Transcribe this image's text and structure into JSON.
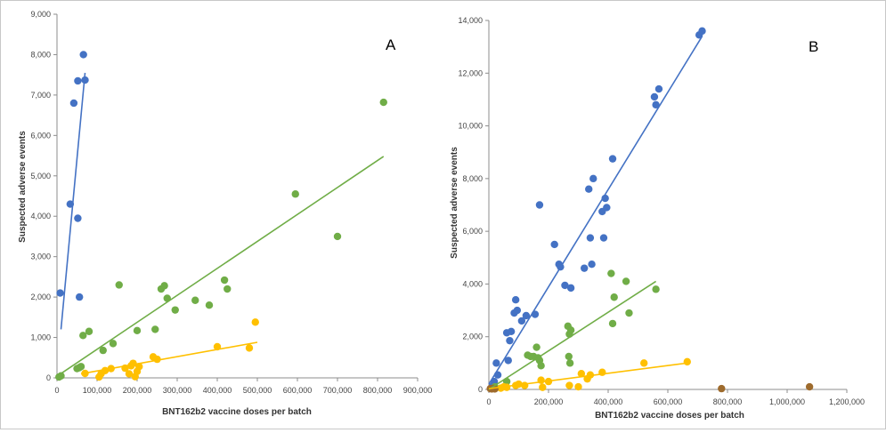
{
  "chart_data": [
    {
      "type": "scatter",
      "panel_label": "A",
      "xlabel": "BNT162b2 vaccine doses per batch",
      "ylabel": "Suspected adverse events",
      "xlim": [
        0,
        900000
      ],
      "ylim": [
        0,
        9000
      ],
      "x_ticks": [
        0,
        100000,
        200000,
        300000,
        400000,
        500000,
        600000,
        700000,
        800000,
        900000
      ],
      "x_tick_labels": [
        "0",
        "100,000",
        "200,000",
        "300,000",
        "400,000",
        "500,000",
        "600,000",
        "700,000",
        "800,000",
        "900,000"
      ],
      "y_ticks": [
        0,
        1000,
        2000,
        3000,
        4000,
        5000,
        6000,
        7000,
        8000,
        9000
      ],
      "y_tick_labels": [
        "0",
        "1,000",
        "2,000",
        "3,000",
        "4,000",
        "5,000",
        "6,000",
        "7,000",
        "8,000",
        "9,000"
      ],
      "series": [
        {
          "name": "blue",
          "color": "#4472C4",
          "points": [
            [
              8000,
              2100
            ],
            [
              33000,
              4300
            ],
            [
              42000,
              6800
            ],
            [
              52000,
              7350
            ],
            [
              56000,
              2000
            ],
            [
              52000,
              3950
            ],
            [
              66000,
              8000
            ],
            [
              70000,
              7370
            ]
          ],
          "trendline": [
            [
              10000,
              1200
            ],
            [
              70000,
              7550
            ]
          ]
        },
        {
          "name": "green",
          "color": "#70AD47",
          "points": [
            [
              5000,
              20
            ],
            [
              10000,
              50
            ],
            [
              50000,
              230
            ],
            [
              55000,
              250
            ],
            [
              60000,
              280
            ],
            [
              65000,
              1050
            ],
            [
              80000,
              1150
            ],
            [
              115000,
              680
            ],
            [
              140000,
              850
            ],
            [
              155000,
              2300
            ],
            [
              200000,
              1170
            ],
            [
              245000,
              1200
            ],
            [
              260000,
              2200
            ],
            [
              268000,
              2280
            ],
            [
              275000,
              1970
            ],
            [
              295000,
              1680
            ],
            [
              345000,
              1920
            ],
            [
              380000,
              1800
            ],
            [
              418000,
              2420
            ],
            [
              425000,
              2200
            ],
            [
              595000,
              4550
            ],
            [
              700000,
              3500
            ],
            [
              815000,
              6820
            ]
          ],
          "trendline": [
            [
              0,
              40
            ],
            [
              815000,
              5480
            ]
          ]
        },
        {
          "name": "yellow",
          "color": "#FFC000",
          "points": [
            [
              70000,
              110
            ],
            [
              105000,
              20
            ],
            [
              110000,
              100
            ],
            [
              120000,
              180
            ],
            [
              135000,
              230
            ],
            [
              170000,
              240
            ],
            [
              180000,
              100
            ],
            [
              185000,
              300
            ],
            [
              190000,
              360
            ],
            [
              195000,
              30
            ],
            [
              200000,
              160
            ],
            [
              205000,
              280
            ],
            [
              240000,
              520
            ],
            [
              250000,
              460
            ],
            [
              400000,
              770
            ],
            [
              480000,
              740
            ],
            [
              495000,
              1380
            ]
          ],
          "trendline": [
            [
              60000,
              100
            ],
            [
              500000,
              880
            ]
          ]
        }
      ]
    },
    {
      "type": "scatter",
      "panel_label": "B",
      "xlabel": "BNT162b2 vaccine doses per batch",
      "ylabel": "Suspected adverse events",
      "xlim": [
        0,
        1200000
      ],
      "ylim": [
        0,
        14000
      ],
      "x_ticks": [
        0,
        200000,
        400000,
        600000,
        800000,
        1000000,
        1200000
      ],
      "x_tick_labels": [
        "0",
        "200,000",
        "400,000",
        "600,000",
        "800,000",
        "1,000,000",
        "1,200,000"
      ],
      "y_ticks": [
        0,
        2000,
        4000,
        6000,
        8000,
        10000,
        12000,
        14000
      ],
      "y_tick_labels": [
        "0",
        "2,000",
        "4,000",
        "6,000",
        "8,000",
        "10,000",
        "12,000",
        "14,000"
      ],
      "series": [
        {
          "name": "blue",
          "color": "#4472C4",
          "points": [
            [
              8000,
              60
            ],
            [
              12000,
              120
            ],
            [
              18000,
              300
            ],
            [
              25000,
              1000
            ],
            [
              30000,
              550
            ],
            [
              60000,
              2150
            ],
            [
              65000,
              1100
            ],
            [
              70000,
              1850
            ],
            [
              75000,
              2200
            ],
            [
              85000,
              2900
            ],
            [
              90000,
              3400
            ],
            [
              95000,
              3000
            ],
            [
              110000,
              2600
            ],
            [
              125000,
              2800
            ],
            [
              155000,
              2850
            ],
            [
              170000,
              7000
            ],
            [
              220000,
              5500
            ],
            [
              235000,
              4750
            ],
            [
              240000,
              4650
            ],
            [
              255000,
              3950
            ],
            [
              275000,
              3850
            ],
            [
              320000,
              4600
            ],
            [
              335000,
              7600
            ],
            [
              340000,
              5750
            ],
            [
              345000,
              4750
            ],
            [
              350000,
              8000
            ],
            [
              380000,
              6750
            ],
            [
              385000,
              5750
            ],
            [
              390000,
              7250
            ],
            [
              395000,
              6900
            ],
            [
              415000,
              8750
            ],
            [
              555000,
              11100
            ],
            [
              560000,
              10800
            ],
            [
              570000,
              11400
            ],
            [
              705000,
              13450
            ],
            [
              715000,
              13600
            ]
          ],
          "trendline": [
            [
              0,
              200
            ],
            [
              715000,
              13400
            ]
          ]
        },
        {
          "name": "green",
          "color": "#70AD47",
          "points": [
            [
              20000,
              100
            ],
            [
              60000,
              300
            ],
            [
              130000,
              1300
            ],
            [
              140000,
              1250
            ],
            [
              150000,
              1250
            ],
            [
              160000,
              1600
            ],
            [
              165000,
              1200
            ],
            [
              170000,
              1100
            ],
            [
              175000,
              900
            ],
            [
              265000,
              2400
            ],
            [
              268000,
              1250
            ],
            [
              270000,
              2100
            ],
            [
              272000,
              1000
            ],
            [
              275000,
              2250
            ],
            [
              410000,
              4400
            ],
            [
              415000,
              2500
            ],
            [
              420000,
              3500
            ],
            [
              460000,
              4100
            ],
            [
              470000,
              2900
            ],
            [
              560000,
              3800
            ]
          ],
          "trendline": [
            [
              0,
              0
            ],
            [
              560000,
              4100
            ]
          ]
        },
        {
          "name": "yellow",
          "color": "#FFC000",
          "points": [
            [
              40000,
              50
            ],
            [
              50000,
              100
            ],
            [
              60000,
              80
            ],
            [
              90000,
              150
            ],
            [
              100000,
              200
            ],
            [
              120000,
              150
            ],
            [
              175000,
              350
            ],
            [
              180000,
              80
            ],
            [
              200000,
              300
            ],
            [
              270000,
              150
            ],
            [
              300000,
              100
            ],
            [
              310000,
              600
            ],
            [
              330000,
              400
            ],
            [
              340000,
              550
            ],
            [
              380000,
              650
            ],
            [
              520000,
              1000
            ],
            [
              665000,
              1050
            ]
          ],
          "trendline": [
            [
              0,
              30
            ],
            [
              665000,
              1000
            ]
          ]
        },
        {
          "name": "brown",
          "color": "#9E6B2D",
          "points": [
            [
              5000,
              30
            ],
            [
              10000,
              20
            ],
            [
              15000,
              40
            ],
            [
              20000,
              20
            ],
            [
              780000,
              30
            ],
            [
              1075000,
              100
            ]
          ],
          "trendline": null
        }
      ]
    }
  ]
}
